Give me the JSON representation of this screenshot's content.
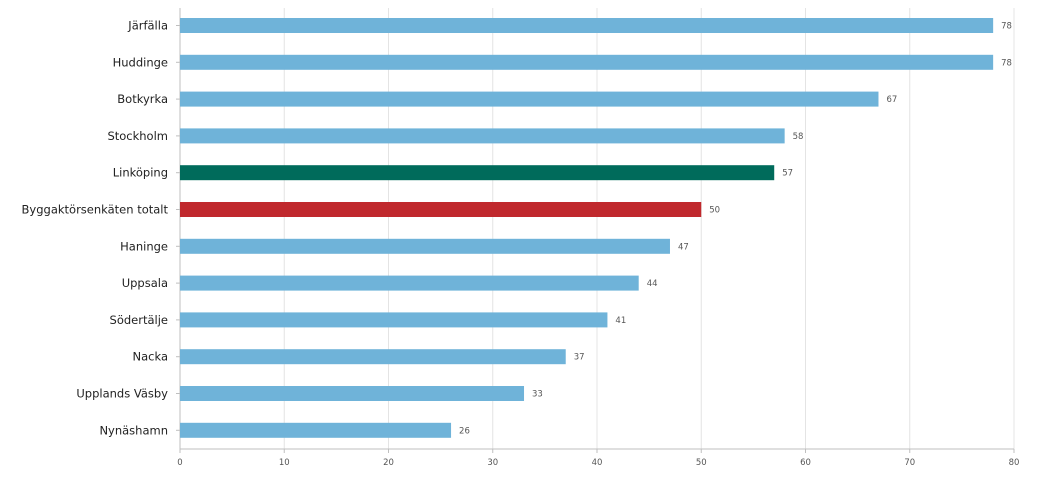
{
  "chart_data": {
    "type": "bar",
    "orientation": "horizontal",
    "categories": [
      "Järfälla",
      "Huddinge",
      "Botkyrka",
      "Stockholm",
      "Linköping",
      "Byggaktörsenkäten totalt",
      "Haninge",
      "Uppsala",
      "Södertälje",
      "Nacka",
      "Upplands Väsby",
      "Nynäshamn"
    ],
    "values": [
      78,
      78,
      67,
      58,
      57,
      50,
      47,
      44,
      41,
      37,
      33,
      26
    ],
    "bar_colors": [
      "#6fb3d9",
      "#6fb3d9",
      "#6fb3d9",
      "#6fb3d9",
      "#006b5b",
      "#c0282d",
      "#6fb3d9",
      "#6fb3d9",
      "#6fb3d9",
      "#6fb3d9",
      "#6fb3d9",
      "#6fb3d9"
    ],
    "xlim": [
      0,
      80
    ],
    "xticks": [
      0,
      10,
      20,
      30,
      40,
      50,
      60,
      70,
      80
    ],
    "title": "",
    "xlabel": "",
    "ylabel": "",
    "grid": true,
    "legend": "none"
  }
}
